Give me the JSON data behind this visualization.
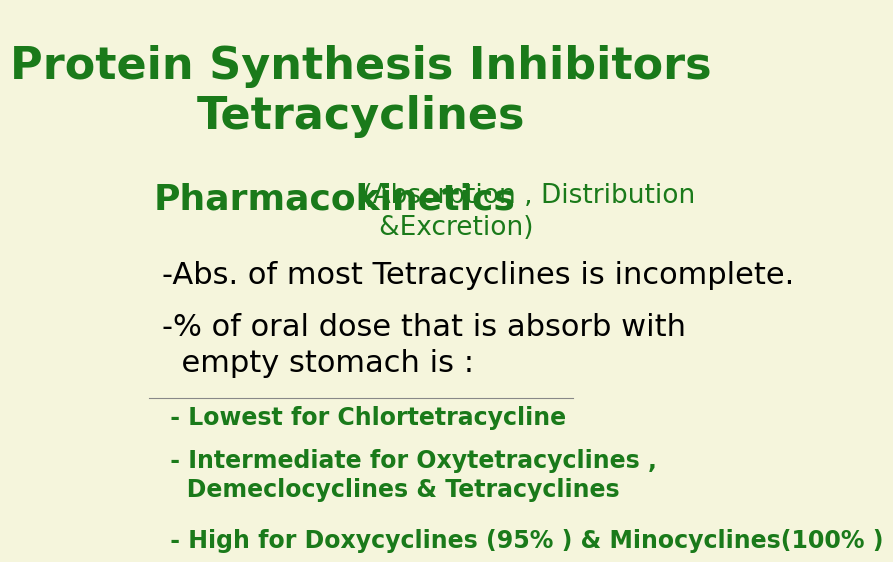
{
  "background_color": "#f5f5dc",
  "title_line1": "Protein Synthesis Inhibitors",
  "title_line2": "Tetracyclines",
  "title_color": "#1a7a1a",
  "title_fontsize": 32,
  "title_fontweight": "bold",
  "subtitle_bold": "Pharmacokinetics",
  "subtitle_rest": " (Absorption , Distribution\n   &Excretion)",
  "subtitle_bold_size": 26,
  "subtitle_rest_size": 19,
  "subtitle_color": "#1a7a1a",
  "body_lines": [
    "-Abs. of most Tetracyclines is incomplete.",
    "-% of oral dose that is absorb with\n  empty stomach is :"
  ],
  "body_color": "#000000",
  "body_fontsize": 22,
  "bullet_lines": [
    " - Lowest for Chlortetracycline",
    " - Intermediate for Oxytetracyclines ,\n   Demeclocyclines & Tetracyclines",
    " - High for Doxycyclines (95% ) & Minocyclines(100% )"
  ],
  "bullet_color": "#1a7a1a",
  "bullet_fontsize": 17
}
